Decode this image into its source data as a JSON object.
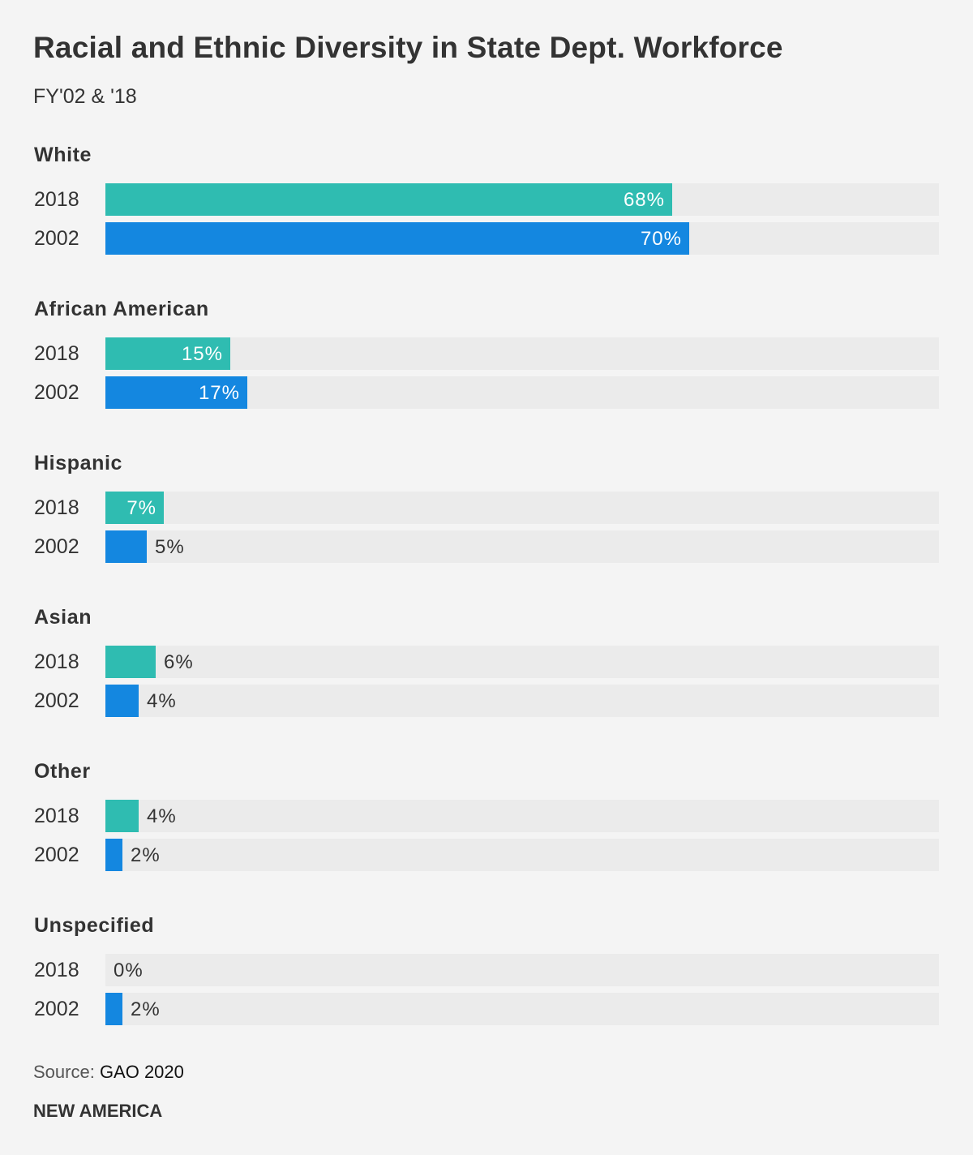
{
  "title": "Racial and Ethnic Diversity in State Dept. Workforce",
  "subtitle": "FY'02 & '18",
  "source": {
    "prefix": "Source: ",
    "value": "GAO 2020"
  },
  "brand": "NEW AMERICA",
  "colors": {
    "2018": "#2fbcb1",
    "2002": "#1487e0",
    "track": "#ebebeb",
    "text": "#333333"
  },
  "chart_data": {
    "type": "bar",
    "orientation": "horizontal",
    "xlim": [
      0,
      100
    ],
    "grid": false,
    "legend": "none",
    "categories": [
      "White",
      "African American",
      "Hispanic",
      "Asian",
      "Other",
      "Unspecified"
    ],
    "series": [
      {
        "name": "2018",
        "values": [
          68,
          15,
          7,
          6,
          4,
          0
        ],
        "labels": [
          "68%",
          "15%",
          "7%",
          "6%",
          "4%",
          "0%"
        ]
      },
      {
        "name": "2002",
        "values": [
          70,
          17,
          5,
          4,
          2,
          2
        ],
        "labels": [
          "70%",
          "17%",
          "5%",
          "4%",
          "2%",
          "2%"
        ]
      }
    ]
  }
}
